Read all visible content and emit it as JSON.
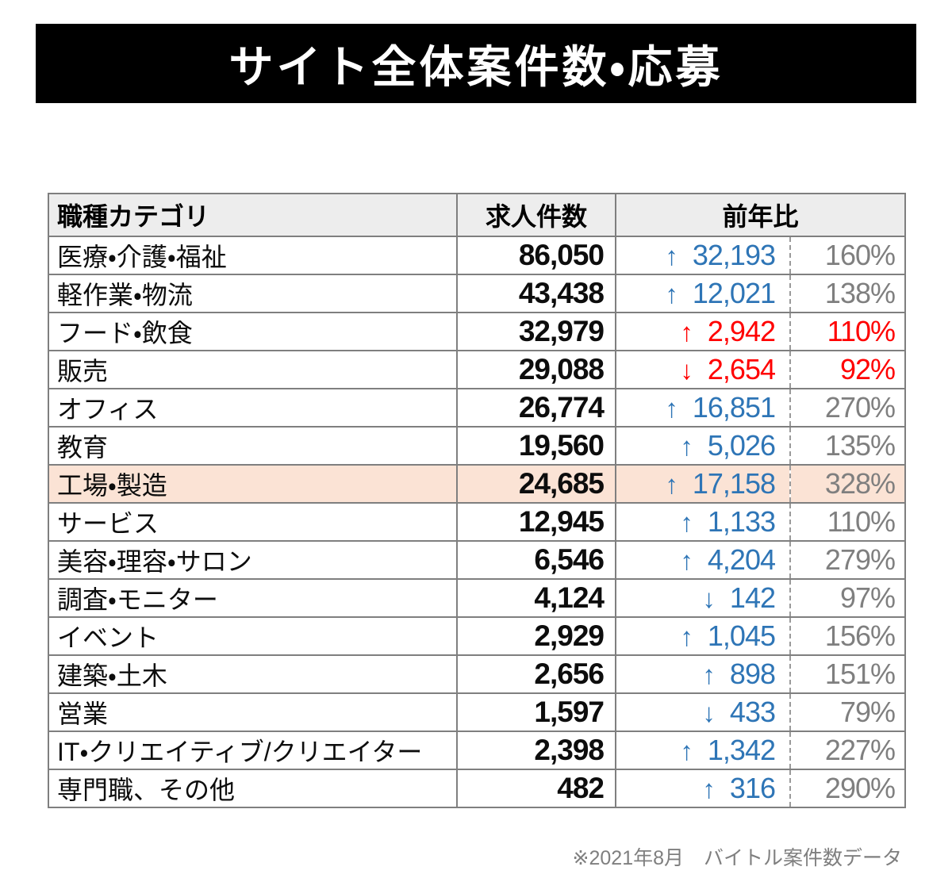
{
  "chart_data": {
    "type": "table",
    "title": "サイト全体案件数・応募",
    "columns": {
      "category": "職種カテゴリ",
      "count": "求人件数",
      "yoy": "前年比"
    },
    "rows": [
      {
        "category": "医療・介護・福祉",
        "count": "86,050",
        "arrow": "↑",
        "change": "32,193",
        "percent": "160%",
        "tone": "blue",
        "highlight": false
      },
      {
        "category": "軽作業・物流",
        "count": "43,438",
        "arrow": "↑",
        "change": "12,021",
        "percent": "138%",
        "tone": "blue",
        "highlight": false
      },
      {
        "category": "フード・飲食",
        "count": "32,979",
        "arrow": "↑",
        "change": "2,942",
        "percent": "110%",
        "tone": "red",
        "highlight": false
      },
      {
        "category": "販売",
        "count": "29,088",
        "arrow": "↓",
        "change": "2,654",
        "percent": "92%",
        "tone": "red",
        "highlight": false
      },
      {
        "category": "オフィス",
        "count": "26,774",
        "arrow": "↑",
        "change": "16,851",
        "percent": "270%",
        "tone": "blue",
        "highlight": false
      },
      {
        "category": "教育",
        "count": "19,560",
        "arrow": "↑",
        "change": "5,026",
        "percent": "135%",
        "tone": "blue",
        "highlight": false
      },
      {
        "category": "工場・製造",
        "count": "24,685",
        "arrow": "↑",
        "change": "17,158",
        "percent": "328%",
        "tone": "blue",
        "highlight": true
      },
      {
        "category": "サービス",
        "count": "12,945",
        "arrow": "↑",
        "change": "1,133",
        "percent": "110%",
        "tone": "blue",
        "highlight": false
      },
      {
        "category": "美容・理容・サロン",
        "count": "6,546",
        "arrow": "↑",
        "change": "4,204",
        "percent": "279%",
        "tone": "blue",
        "highlight": false
      },
      {
        "category": "調査・モニター",
        "count": "4,124",
        "arrow": "↓",
        "change": "142",
        "percent": "97%",
        "tone": "blue",
        "highlight": false
      },
      {
        "category": "イベント",
        "count": "2,929",
        "arrow": "↑",
        "change": "1,045",
        "percent": "156%",
        "tone": "blue",
        "highlight": false
      },
      {
        "category": "建築・土木",
        "count": "2,656",
        "arrow": "↑",
        "change": "898",
        "percent": "151%",
        "tone": "blue",
        "highlight": false
      },
      {
        "category": "営業",
        "count": "1,597",
        "arrow": "↓",
        "change": "433",
        "percent": "79%",
        "tone": "blue",
        "highlight": false
      },
      {
        "category": "IT・クリエイティブ/クリエイター",
        "count": "2,398",
        "arrow": "↑",
        "change": "1,342",
        "percent": "227%",
        "tone": "blue",
        "highlight": false
      },
      {
        "category": "専門職、その他",
        "count": "482",
        "arrow": "↑",
        "change": "316",
        "percent": "290%",
        "tone": "blue",
        "highlight": false
      }
    ],
    "footnote": "※2021年8月　バイトル案件数データ"
  },
  "colors": {
    "accent-blue": "#2E75B6",
    "accent-red": "#FF0000",
    "muted-gray": "#7F7F7F",
    "highlight-row": "#FBE3D5",
    "header-bg": "#EDEDED",
    "border-gray": "#7F7F7F",
    "banner-bg": "#000000",
    "banner-text": "#FFFFFF",
    "text-black": "#111111"
  }
}
